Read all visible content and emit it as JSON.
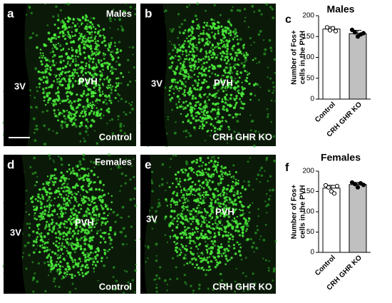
{
  "panels": [
    {
      "letter": "a",
      "sex": "Males",
      "ventricle": "3V",
      "region": "PVH",
      "genotype": "Control"
    },
    {
      "letter": "b",
      "ventricle": "3V",
      "region": "PVH",
      "genotype": "CRH GHR KO"
    },
    {
      "letter": "d",
      "sex": "Females",
      "ventricle": "3V",
      "region": "PVH",
      "genotype": "Control"
    },
    {
      "letter": "e",
      "ventricle": "3V",
      "region": "PVH",
      "genotype": "CRH GHR KO"
    }
  ],
  "chart_data": [
    {
      "type": "bar",
      "letter": "c",
      "title": "Males",
      "ylabel": [
        "Number of Fos+",
        "cells in the PVH"
      ],
      "categories": [
        "Control",
        "CRH GHR KO"
      ],
      "values": [
        168,
        157
      ],
      "errors": [
        5,
        8
      ],
      "points": [
        [
          172,
          165,
          170,
          163
        ],
        [
          166,
          160,
          150,
          155,
          158
        ]
      ],
      "colors": [
        "#ffffff",
        "#c0c0c0"
      ],
      "ylim": [
        0,
        200
      ],
      "yticks": [
        0,
        50,
        100,
        150,
        200
      ]
    },
    {
      "type": "bar",
      "letter": "f",
      "title": "Females",
      "ylabel": [
        "Number of Fos+",
        "cells in the PVH"
      ],
      "categories": [
        "Control",
        "CRH GHR KO"
      ],
      "values": [
        158,
        167
      ],
      "errors": [
        7,
        5
      ],
      "points": [
        [
          165,
          160,
          150,
          145,
          163
        ],
        [
          172,
          168,
          160,
          170,
          166
        ]
      ],
      "colors": [
        "#ffffff",
        "#c0c0c0"
      ],
      "ylim": [
        0,
        200
      ],
      "yticks": [
        0,
        50,
        100,
        150,
        200
      ]
    }
  ]
}
